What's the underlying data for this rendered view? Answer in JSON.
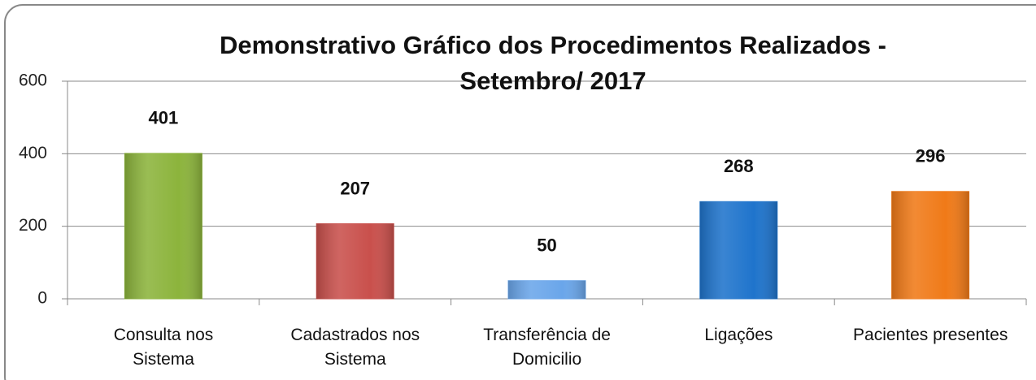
{
  "chart_data": {
    "type": "bar",
    "title": "Demonstrativo Gráfico dos Procedimentos Realizados -\nSetembro/ 2017",
    "categories": [
      "Consulta nos\nSistema",
      "Cadastrados nos\nSistema",
      "Transferência de\nDomicilio",
      "Ligações",
      "Pacientes presentes"
    ],
    "values": [
      401,
      207,
      50,
      268,
      296
    ],
    "colors": [
      "#8cb43c",
      "#c9504c",
      "#6aa6ea",
      "#1f74cc",
      "#f07a18"
    ],
    "ylim": [
      0,
      600
    ],
    "yticks": [
      0,
      200,
      400,
      600
    ],
    "grid": true
  }
}
